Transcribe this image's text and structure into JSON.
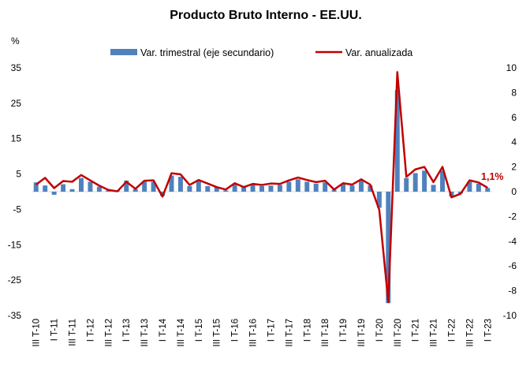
{
  "chart_data": {
    "type": "bar+line",
    "title": "Producto Bruto Interno - EE.UU.",
    "left_axis": {
      "unit_label": "%",
      "ylim": [
        -35,
        35
      ],
      "ticks": [
        "35",
        "25",
        "15",
        "5",
        "-5",
        "-15",
        "-25",
        "-35"
      ],
      "tick_values": [
        35,
        25,
        15,
        5,
        -5,
        -15,
        -25,
        -35
      ]
    },
    "right_axis": {
      "ylim": [
        -10,
        10
      ],
      "ticks": [
        "10",
        "8",
        "6",
        "4",
        "2",
        "0",
        "-2",
        "-4",
        "-6",
        "-8",
        "-10"
      ],
      "tick_values": [
        10,
        8,
        6,
        4,
        2,
        0,
        -2,
        -4,
        -6,
        -8,
        -10
      ]
    },
    "x_tick_labels": [
      "III T-10",
      "I T-11",
      "III T-11",
      "I T-12",
      "III T-12",
      "I T-13",
      "III T-13",
      "I T-14",
      "III T-14",
      "I T-15",
      "III T-15",
      "I T-16",
      "III T-16",
      "I T-17",
      "III T-17",
      "I T-18",
      "III T-18",
      "I T-19",
      "III T-19",
      "I T-20",
      "III T-20",
      "I T-21",
      "III T-21",
      "I T-22",
      "III T-22",
      "I T-23"
    ],
    "quarters": [
      "III T-10",
      "IV T-10",
      "I T-11",
      "II T-11",
      "III T-11",
      "IV T-11",
      "I T-12",
      "II T-12",
      "III T-12",
      "IV T-12",
      "I T-13",
      "II T-13",
      "III T-13",
      "IV T-13",
      "I T-14",
      "II T-14",
      "III T-14",
      "IV T-14",
      "I T-15",
      "II T-15",
      "III T-15",
      "IV T-15",
      "I T-16",
      "II T-16",
      "III T-16",
      "IV T-16",
      "I T-17",
      "II T-17",
      "III T-17",
      "IV T-17",
      "I T-18",
      "II T-18",
      "III T-18",
      "IV T-18",
      "I T-19",
      "II T-19",
      "III T-19",
      "IV T-19",
      "I T-20",
      "II T-20",
      "III T-20",
      "IV T-20",
      "I T-21",
      "II T-21",
      "III T-21",
      "IV T-21",
      "I T-22",
      "II T-22",
      "III T-22",
      "IV T-22",
      "I T-23"
    ],
    "series": [
      {
        "name": "Var. trimestral (eje secundario)",
        "type": "bar",
        "axis": "right",
        "color": "#4F81BD",
        "values": [
          0.75,
          0.5,
          -0.25,
          0.6,
          0.2,
          1.1,
          0.8,
          0.4,
          0.1,
          0.1,
          0.9,
          0.2,
          0.8,
          0.8,
          -0.35,
          1.3,
          1.2,
          0.45,
          0.85,
          0.45,
          0.35,
          0.1,
          0.6,
          0.35,
          0.55,
          0.45,
          0.5,
          0.55,
          0.8,
          1.0,
          0.8,
          0.65,
          0.75,
          0.15,
          0.6,
          0.5,
          0.9,
          0.5,
          -1.3,
          -9.0,
          8.2,
          1.1,
          1.5,
          1.7,
          0.55,
          1.7,
          -0.4,
          -0.15,
          0.8,
          0.65,
          0.3
        ]
      },
      {
        "name": "Var. anualizada",
        "type": "line",
        "axis": "left",
        "color": "#C00000",
        "values": [
          2.0,
          3.9,
          1.0,
          3.0,
          2.8,
          4.7,
          3.2,
          1.7,
          0.5,
          0.1,
          2.8,
          0.8,
          3.1,
          3.2,
          -1.4,
          5.2,
          4.9,
          1.9,
          3.3,
          2.3,
          1.3,
          0.6,
          2.4,
          1.3,
          2.2,
          1.9,
          2.3,
          2.2,
          3.2,
          4.0,
          3.3,
          2.7,
          3.1,
          0.6,
          2.4,
          2.0,
          3.5,
          2.0,
          -5.1,
          -31.2,
          33.8,
          4.2,
          6.3,
          7.0,
          2.7,
          7.0,
          -1.6,
          -0.6,
          3.2,
          2.6,
          1.1
        ]
      }
    ],
    "annotations": [
      {
        "text": "1,1%",
        "color": "#C00000"
      }
    ],
    "legend_placement": "top",
    "grid": false
  }
}
